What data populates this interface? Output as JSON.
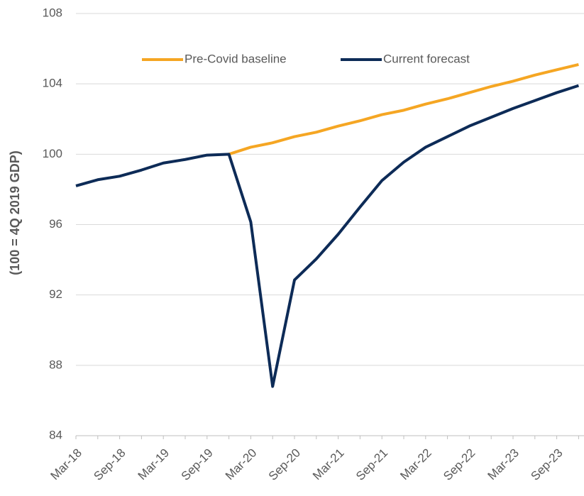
{
  "chart_data": {
    "type": "line",
    "y_label": "(100 = 4Q 2019 GDP)",
    "categories": [
      "Mar-18",
      null,
      "Sep-18",
      null,
      "Mar-19",
      null,
      "Sep-19",
      null,
      "Mar-20",
      null,
      "Sep-20",
      null,
      "Mar-21",
      null,
      "Sep-21",
      null,
      "Mar-22",
      null,
      "Sep-22",
      null,
      "Mar-23",
      null,
      "Sep-23",
      null
    ],
    "series": [
      {
        "name": "Pre-Covid baseline",
        "color": "#f5a623",
        "values": [
          null,
          null,
          null,
          null,
          null,
          null,
          null,
          100,
          100.4,
          100.65,
          101.0,
          101.25,
          101.6,
          101.9,
          102.25,
          102.5,
          102.85,
          103.15,
          103.5,
          103.85,
          104.15,
          104.5,
          104.8,
          105.1
        ]
      },
      {
        "name": "Current forecast",
        "color": "#0d2b57",
        "values": [
          98.2,
          98.55,
          98.75,
          99.1,
          99.5,
          99.7,
          99.95,
          100.0,
          96.15,
          86.8,
          92.85,
          94.05,
          95.45,
          97.0,
          98.5,
          99.55,
          100.4,
          101.0,
          101.6,
          102.1,
          102.6,
          103.05,
          103.5,
          103.9
        ]
      }
    ],
    "ylim": [
      84,
      108
    ],
    "yticks": [
      84,
      88,
      92,
      96,
      100,
      104,
      108
    ],
    "grid": true
  }
}
